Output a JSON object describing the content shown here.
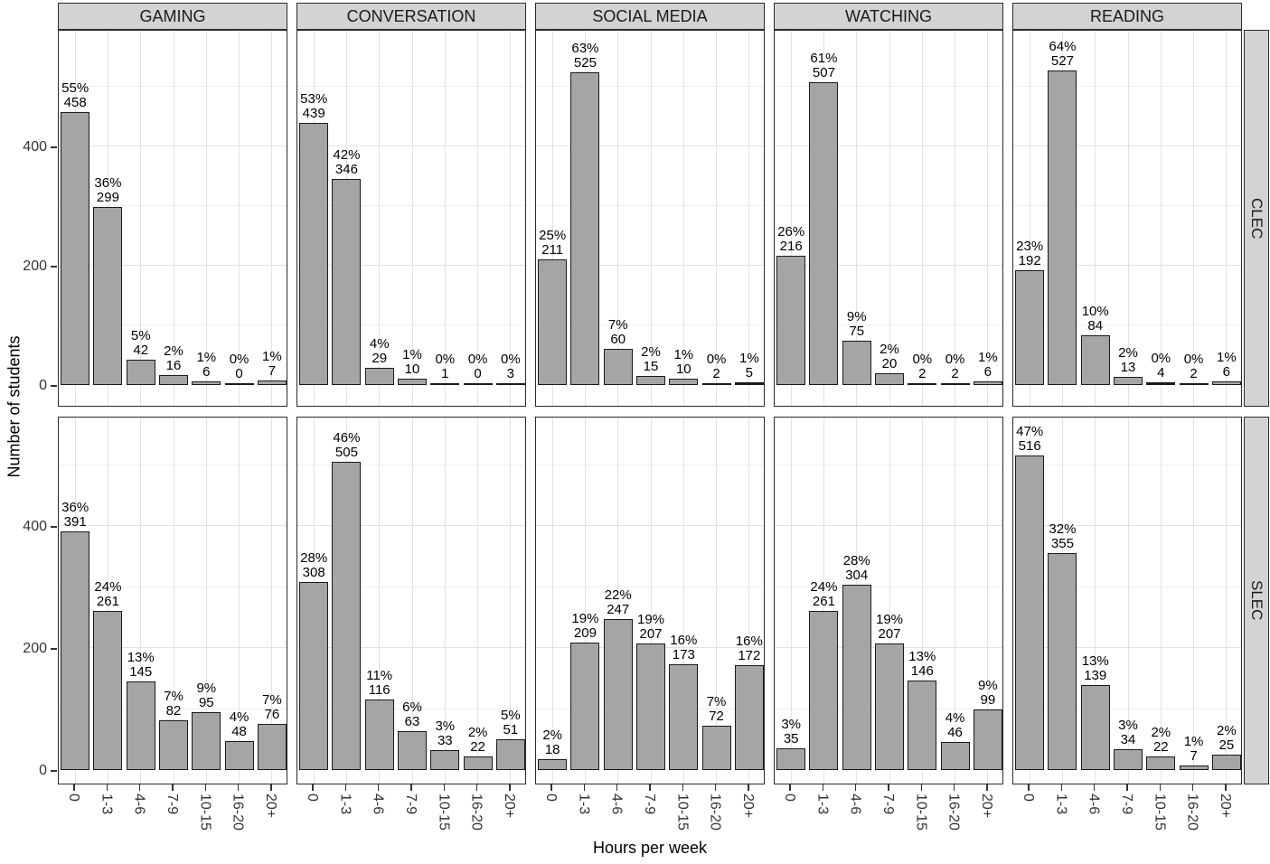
{
  "figure": {
    "xlabel": "Hours per week",
    "ylabel": "Number of students"
  },
  "chart_data": {
    "type": "bar",
    "title": "",
    "xlabel": "Hours per week",
    "ylabel": "Number of students",
    "categories": [
      "0",
      "1-3",
      "4-6",
      "7-9",
      "10-15",
      "16-20",
      "20+"
    ],
    "col_facets": [
      "GAMING",
      "CONVERSATION",
      "SOCIAL MEDIA",
      "WATCHING",
      "READING"
    ],
    "row_facets": [
      "CLEC",
      "SLEC"
    ],
    "y_ticks": [
      0,
      200,
      400
    ],
    "y_minor_ticks": [
      100,
      300,
      500
    ],
    "ylim": [
      0,
      600
    ],
    "grid": true,
    "legend": "none",
    "panels": [
      {
        "row_facet": "CLEC",
        "col_facet": "GAMING",
        "counts": [
          458,
          299,
          42,
          16,
          6,
          0,
          7
        ],
        "percents": [
          "55%",
          "36%",
          "5%",
          "2%",
          "1%",
          "0%",
          "1%"
        ]
      },
      {
        "row_facet": "CLEC",
        "col_facet": "CONVERSATION",
        "counts": [
          439,
          346,
          29,
          10,
          1,
          0,
          3
        ],
        "percents": [
          "53%",
          "42%",
          "4%",
          "1%",
          "0%",
          "0%",
          "0%"
        ]
      },
      {
        "row_facet": "CLEC",
        "col_facet": "SOCIAL MEDIA",
        "counts": [
          211,
          525,
          60,
          15,
          10,
          2,
          5
        ],
        "percents": [
          "25%",
          "63%",
          "7%",
          "2%",
          "1%",
          "0%",
          "1%"
        ]
      },
      {
        "row_facet": "CLEC",
        "col_facet": "WATCHING",
        "counts": [
          216,
          507,
          75,
          20,
          2,
          2,
          6
        ],
        "percents": [
          "26%",
          "61%",
          "9%",
          "2%",
          "0%",
          "0%",
          "1%"
        ]
      },
      {
        "row_facet": "CLEC",
        "col_facet": "READING",
        "counts": [
          192,
          527,
          84,
          13,
          4,
          2,
          6
        ],
        "percents": [
          "23%",
          "64%",
          "10%",
          "2%",
          "0%",
          "0%",
          "1%"
        ]
      },
      {
        "row_facet": "SLEC",
        "col_facet": "GAMING",
        "counts": [
          391,
          261,
          145,
          82,
          95,
          48,
          76
        ],
        "percents": [
          "36%",
          "24%",
          "13%",
          "7%",
          "9%",
          "4%",
          "7%"
        ]
      },
      {
        "row_facet": "SLEC",
        "col_facet": "CONVERSATION",
        "counts": [
          308,
          505,
          116,
          63,
          33,
          22,
          51
        ],
        "percents": [
          "28%",
          "46%",
          "11%",
          "6%",
          "3%",
          "2%",
          "5%"
        ]
      },
      {
        "row_facet": "SLEC",
        "col_facet": "SOCIAL MEDIA",
        "counts": [
          18,
          209,
          247,
          207,
          173,
          72,
          172
        ],
        "percents": [
          "2%",
          "19%",
          "22%",
          "19%",
          "16%",
          "7%",
          "16%"
        ]
      },
      {
        "row_facet": "SLEC",
        "col_facet": "WATCHING",
        "counts": [
          35,
          261,
          304,
          207,
          146,
          46,
          99
        ],
        "percents": [
          "3%",
          "24%",
          "28%",
          "19%",
          "13%",
          "4%",
          "9%"
        ]
      },
      {
        "row_facet": "SLEC",
        "col_facet": "READING",
        "counts": [
          516,
          355,
          139,
          34,
          22,
          7,
          25
        ],
        "percents": [
          "47%",
          "32%",
          "13%",
          "3%",
          "2%",
          "1%",
          "2%"
        ]
      }
    ]
  },
  "colors": {
    "bar_fill": "#a5a5a5",
    "bar_border": "#1a1a1a",
    "strip_bg": "#d3d3d3",
    "panel_border": "#2b2b2b",
    "grid_major": "#e2e2e2",
    "grid_minor": "#efefef",
    "text": "#000000"
  }
}
